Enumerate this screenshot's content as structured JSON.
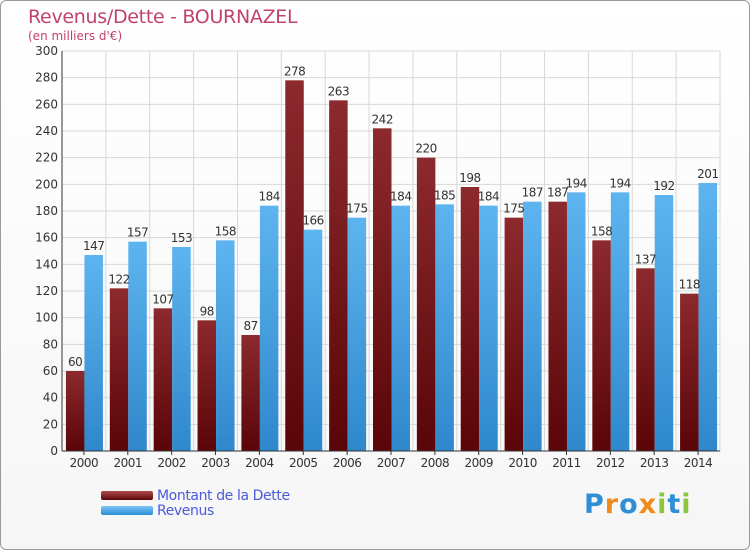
{
  "chart_data": {
    "type": "bar",
    "title": "Revenus/Dette - BOURNAZEL",
    "subtitle": "(en milliers d'€)",
    "categories": [
      "2000",
      "2001",
      "2002",
      "2003",
      "2004",
      "2005",
      "2006",
      "2007",
      "2008",
      "2009",
      "2010",
      "2011",
      "2012",
      "2013",
      "2014"
    ],
    "series": [
      {
        "name": "Montant de la Dette",
        "values": [
          60,
          122,
          107,
          98,
          87,
          278,
          263,
          242,
          220,
          198,
          175,
          187,
          158,
          137,
          118
        ],
        "color": "#7a1e22"
      },
      {
        "name": "Revenus",
        "values": [
          147,
          157,
          153,
          158,
          184,
          166,
          175,
          184,
          185,
          184,
          187,
          194,
          194,
          192,
          201
        ],
        "color": "#4aa8ea"
      }
    ],
    "ylim": [
      0,
      300
    ],
    "yticks": [
      0,
      20,
      40,
      60,
      80,
      100,
      120,
      140,
      160,
      180,
      200,
      220,
      240,
      260,
      280,
      300
    ],
    "grid": true,
    "legend_position": "bottom-left"
  },
  "brand": {
    "text": "Proxiti",
    "letters": [
      {
        "ch": "P",
        "color": "#2f8fd6"
      },
      {
        "ch": "r",
        "color": "#f08a1c"
      },
      {
        "ch": "o",
        "color": "#2f8fd6"
      },
      {
        "ch": "x",
        "color": "#f08a1c"
      },
      {
        "ch": "i",
        "color": "#8cc63f"
      },
      {
        "ch": "t",
        "color": "#2f8fd6"
      },
      {
        "ch": "i",
        "color": "#8cc63f"
      }
    ]
  }
}
